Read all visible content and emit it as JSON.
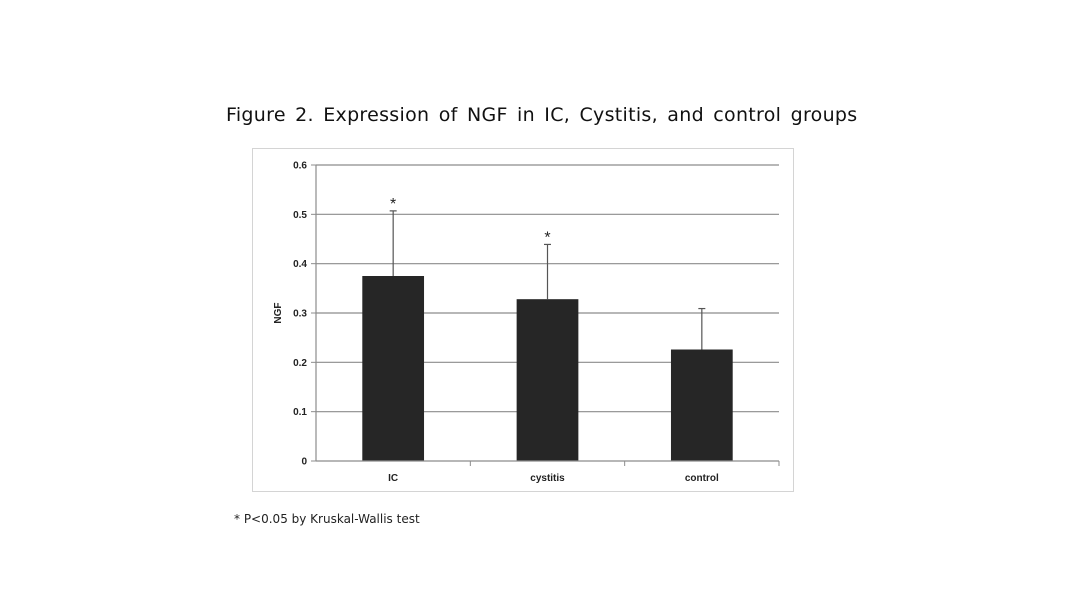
{
  "figure": {
    "title": "Figure 2. Expression of NGF in IC, Cystitis, and control groups",
    "footnote": "* P<0.05 by Kruskal-Wallis test"
  },
  "chart_data": {
    "type": "bar",
    "title": "",
    "xlabel": "",
    "ylabel": "NGF",
    "categories": [
      "IC",
      "cystitis",
      "control"
    ],
    "values": [
      0.375,
      0.328,
      0.226
    ],
    "error_plus": [
      0.132,
      0.111,
      0.083
    ],
    "significance": [
      "*",
      "*",
      ""
    ],
    "ylim": [
      0,
      0.6
    ],
    "yticks": [
      "0",
      "0.1",
      "0.2",
      "0.3",
      "0.4",
      "0.5",
      "0.6"
    ],
    "ytick_values": [
      0,
      0.1,
      0.2,
      0.3,
      0.4,
      0.5,
      0.6
    ],
    "grid": true,
    "legend": "none",
    "colors": {
      "bar": "#262626",
      "grid": "#8c8c8c",
      "axis": "#8c8c8c",
      "error": "#555555"
    }
  }
}
